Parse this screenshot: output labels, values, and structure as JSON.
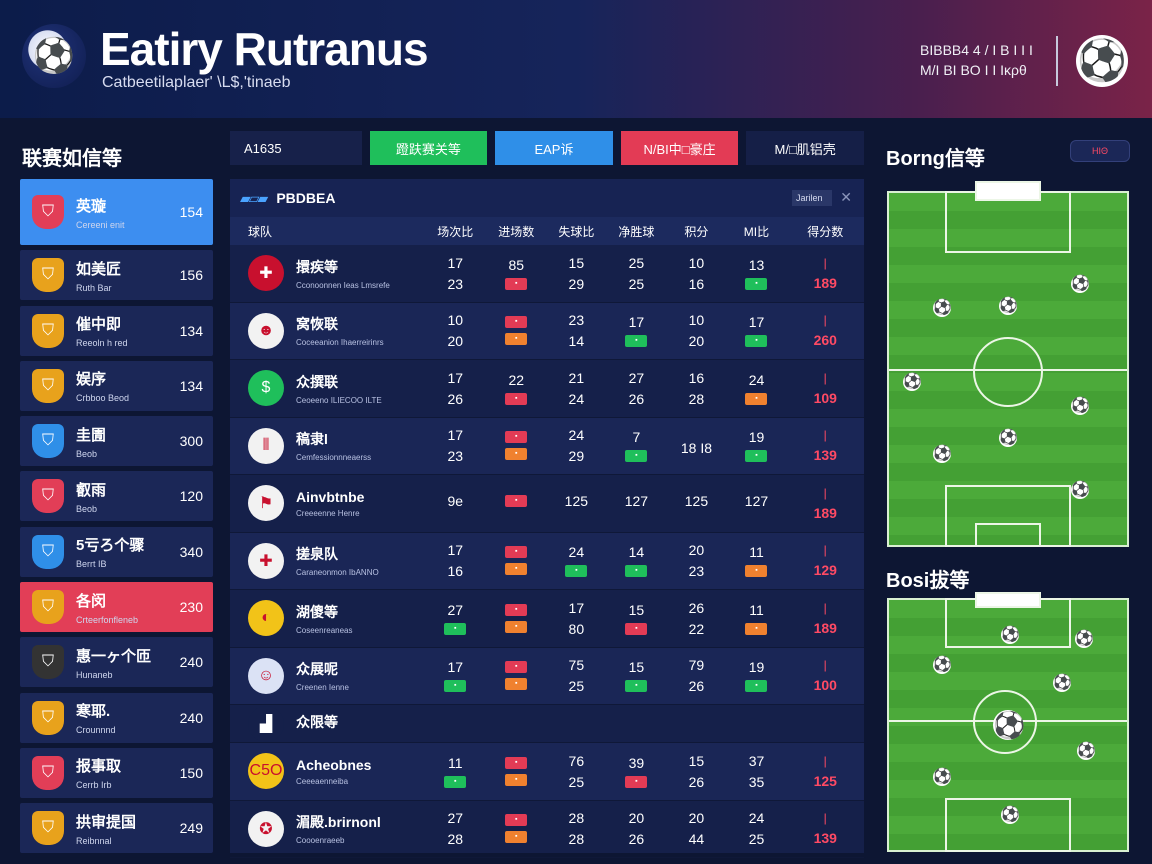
{
  "header": {
    "title": "Eatiry Rutranus",
    "subtitle": "Catbeetilaplaer' \\L$,'tinaeb",
    "meta_line1": "ΒΙΒΒΒ4 4 / Ι Β Ι Ι Ι",
    "meta_line2": "M/Ι ΒΙ ΒΟ Ι Ι Ικρθ"
  },
  "sidebar": {
    "title": "联赛如信等",
    "teams": [
      {
        "name": "英璇",
        "sub": "Cereeni enit",
        "value": "154",
        "crest_color": "#e23e57",
        "state": "active"
      },
      {
        "name": "如美匠",
        "sub": "Ruth Bar",
        "value": "156",
        "crest_color": "#e8a21c",
        "state": "normal"
      },
      {
        "name": "催中即",
        "sub": "Reeoln h red",
        "value": "134",
        "crest_color": "#e8a21c",
        "state": "normal"
      },
      {
        "name": "娱序",
        "sub": "Crbboo Beod",
        "value": "134",
        "crest_color": "#e8a21c",
        "state": "normal"
      },
      {
        "name": "圭圊",
        "sub": "Beob",
        "value": "300",
        "crest_color": "#2f8fe8",
        "state": "normal"
      },
      {
        "name": "叡雨",
        "sub": "Beob",
        "value": "120",
        "crest_color": "#e23e57",
        "state": "normal"
      },
      {
        "name": "5亏ろ个骤",
        "sub": "Berrt IB",
        "value": "340",
        "crest_color": "#2f8fe8",
        "state": "normal"
      },
      {
        "name": "各闵",
        "sub": "Crteerfonfleneb",
        "value": "230",
        "crest_color": "#e8a21c",
        "state": "alert"
      },
      {
        "name": "惠一ヶ个匝",
        "sub": "Hunaneb",
        "value": "240",
        "crest_color": "#333333",
        "state": "normal"
      },
      {
        "name": "寒耶.",
        "sub": "Crounnnd",
        "value": "240",
        "crest_color": "#e8a21c",
        "state": "normal"
      },
      {
        "name": "报事取",
        "sub": "Cerrb Irb",
        "value": "150",
        "crest_color": "#e23e57",
        "state": "normal"
      },
      {
        "name": "拱审提国",
        "sub": "Reibnnal",
        "value": "249",
        "crest_color": "#e8a21c",
        "state": "normal"
      }
    ]
  },
  "tabs": [
    {
      "label": "A1635",
      "style": "plain"
    },
    {
      "label": "蹬趺赛关等",
      "style": "green"
    },
    {
      "label": "EAP诉",
      "style": "blue"
    },
    {
      "label": "N/BI中□豪庄",
      "style": "red"
    },
    {
      "label": "M/□肌铝壳",
      "style": "dark"
    }
  ],
  "table": {
    "icon": "▰▱▰",
    "title": "PBDBEA",
    "filter_label": "Jarilen",
    "columns": [
      "球队",
      "场次比",
      "进场数",
      "失球比",
      "净胜球",
      "积分",
      "MI比",
      "得分数"
    ],
    "rows": [
      {
        "name": "擐疾等",
        "sub": "Cconoonnen Ieas Lmsrefe",
        "crest": "✚",
        "crest_color": "#c8102e",
        "c1": [
          "17",
          "23"
        ],
        "c2": [
          "85",
          "b-red"
        ],
        "c3": [
          "15",
          "29"
        ],
        "c4": [
          "25",
          "25"
        ],
        "c5": [
          "10",
          "16"
        ],
        "c6": [
          "13",
          "b-green"
        ],
        "total": "189"
      },
      {
        "name": "窝恢联",
        "sub": "Coceeanion Ihaerreirinrs",
        "crest": "☻",
        "crest_color": "#f2f2f2",
        "c1": [
          "10",
          "20"
        ],
        "c2": [
          "b-red",
          "b-orange"
        ],
        "c3": [
          "23",
          "14"
        ],
        "c4": [
          "17",
          "b-green"
        ],
        "c5": [
          "10",
          "20"
        ],
        "c6": [
          "17",
          "b-green"
        ],
        "total": "260"
      },
      {
        "name": "众撰联",
        "sub": "Ceoeeno ILIECOO ILTE",
        "crest": "$",
        "crest_color": "#1fbf5b",
        "c1": [
          "17",
          "26"
        ],
        "c2": [
          "22",
          "b-red"
        ],
        "c3": [
          "21",
          "24"
        ],
        "c4": [
          "27",
          "26"
        ],
        "c5": [
          "16",
          "28"
        ],
        "c6": [
          "24",
          "b-orange"
        ],
        "total": "109"
      },
      {
        "name": "稿隶l",
        "sub": "Cemfessionnneaerss",
        "crest": "⦀",
        "crest_color": "#f2f2f2",
        "c1": [
          "17",
          "23"
        ],
        "c2": [
          "b-red",
          "b-orange"
        ],
        "c3": [
          "24",
          "29"
        ],
        "c4": [
          "7",
          "b-green"
        ],
        "c5": [
          "",
          "18 I8"
        ],
        "c6": [
          "19",
          "b-green"
        ],
        "total": "139"
      },
      {
        "name": "Ainvbtnbe",
        "sub": "Creeeenne Henre",
        "crest": "⚑",
        "crest_color": "#f2f2f2",
        "c1": [
          "9e",
          ""
        ],
        "c2": [
          "b-red",
          ""
        ],
        "c3": [
          "125",
          ""
        ],
        "c4": [
          "127",
          ""
        ],
        "c5": [
          "125",
          ""
        ],
        "c6": [
          "127",
          ""
        ],
        "total": "189"
      },
      {
        "name": "搓泉队",
        "sub": "Caraneonmon IbANNO",
        "crest": "✚",
        "crest_color": "#f2f2f2",
        "c1": [
          "17",
          "16"
        ],
        "c2": [
          "b-red",
          "b-orange"
        ],
        "c3": [
          "24",
          "b-green"
        ],
        "c4": [
          "14",
          "b-green"
        ],
        "c5": [
          "20",
          "23"
        ],
        "c6": [
          "11",
          "b-orange"
        ],
        "total": "129"
      },
      {
        "name": "湖傻等",
        "sub": "Coseenreaneas",
        "crest": "◐",
        "crest_color": "#f2c318",
        "c1": [
          "27",
          "b-green"
        ],
        "c2": [
          "b-red",
          "b-orange"
        ],
        "c3": [
          "17",
          "80"
        ],
        "c4": [
          "15",
          "b-red"
        ],
        "c5": [
          "26",
          "22"
        ],
        "c6": [
          "11",
          "b-orange"
        ],
        "total": "189"
      },
      {
        "name": "众展呢",
        "sub": "Creenen Ienne",
        "crest": "☺",
        "crest_color": "#dbe2f5",
        "c1": [
          "17",
          "b-green"
        ],
        "c2": [
          "b-red",
          "b-orange"
        ],
        "c3": [
          "75",
          "25"
        ],
        "c4": [
          "15",
          "b-green"
        ],
        "c5": [
          "79",
          "26"
        ],
        "c6": [
          "19",
          "b-green"
        ],
        "total": "100"
      },
      {
        "name": "众限等",
        "sub": "",
        "crest": "▟",
        "crest_color": "#15204a",
        "c1": [
          "",
          ""
        ],
        "c2": [
          "",
          ""
        ],
        "c3": [
          "",
          ""
        ],
        "c4": [
          "",
          ""
        ],
        "c5": [
          "",
          ""
        ],
        "c6": [
          "",
          ""
        ],
        "total": ""
      },
      {
        "name": "Acheobnes",
        "sub": "Ceeeaenneiba",
        "crest": "C5O",
        "crest_color": "#f2c318",
        "c1": [
          "11",
          "b-green"
        ],
        "c2": [
          "b-red",
          "b-orange"
        ],
        "c3": [
          "76",
          "25"
        ],
        "c4": [
          "39",
          "b-red"
        ],
        "c5": [
          "15",
          "26"
        ],
        "c6": [
          "37",
          "35"
        ],
        "total": "125"
      },
      {
        "name": "湄殿.brirnonl",
        "sub": "Coooenraeeb",
        "crest": "✪",
        "crest_color": "#f2f2f2",
        "c1": [
          "27",
          "28"
        ],
        "c2": [
          "b-red",
          "b-orange"
        ],
        "c3": [
          "28",
          "28"
        ],
        "c4": [
          "20",
          "26"
        ],
        "c5": [
          "20",
          "44"
        ],
        "c6": [
          "24",
          "25"
        ],
        "total": "139"
      }
    ]
  },
  "right": {
    "title1": "Borng信等",
    "badge": "ΗΙΘ",
    "title2": "Bosi拔等"
  },
  "colors": {
    "accent_blue": "#3d8ef0",
    "accent_red": "#e23e57",
    "accent_green": "#1fbf5b",
    "pitch_green": "#4caa3a"
  }
}
